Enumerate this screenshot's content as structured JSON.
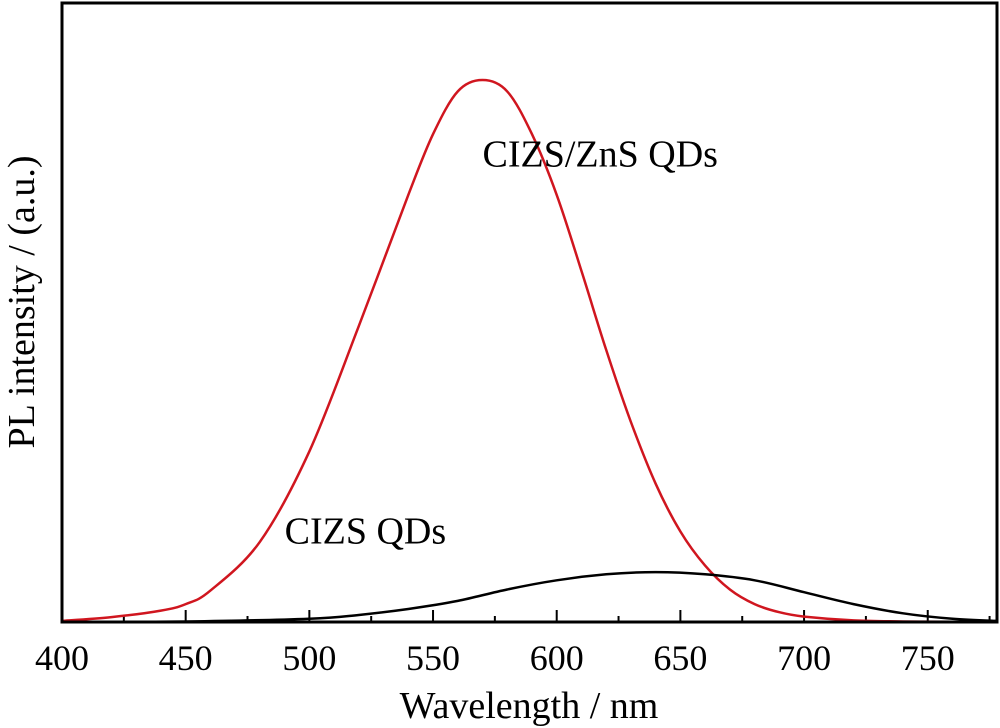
{
  "chart_data": {
    "type": "line",
    "xlabel": "Wavelength / nm",
    "ylabel": "PL intensity / (a.u.)",
    "xlim": [
      400,
      778
    ],
    "ylim": [
      0,
      1.0
    ],
    "x_ticks": [
      400,
      450,
      500,
      550,
      600,
      650,
      700,
      750
    ],
    "y_ticks_shown": false,
    "grid": false,
    "series": [
      {
        "color": "#d0161f",
        "x": [
          400,
          420,
          440,
          450,
          460,
          480,
          500,
          520,
          540,
          550,
          560,
          570,
          580,
          590,
          600,
          610,
          620,
          630,
          640,
          650,
          660,
          670,
          680,
          690,
          700,
          720,
          740,
          760,
          778
        ],
        "y": [
          0.002,
          0.009,
          0.021,
          0.033,
          0.058,
          0.148,
          0.315,
          0.546,
          0.788,
          0.9,
          0.979,
          1.0,
          0.979,
          0.9,
          0.788,
          0.648,
          0.502,
          0.369,
          0.255,
          0.167,
          0.104,
          0.06,
          0.033,
          0.018,
          0.01,
          0.003,
          0.001,
          0.0003,
          0.0001
        ]
      },
      {
        "color": "#000000",
        "x": [
          400,
          450,
          500,
          520,
          540,
          560,
          580,
          600,
          620,
          640,
          660,
          680,
          700,
          720,
          740,
          760,
          778
        ],
        "y": [
          0.0,
          0.001,
          0.006,
          0.013,
          0.024,
          0.039,
          0.06,
          0.077,
          0.088,
          0.092,
          0.088,
          0.077,
          0.055,
          0.033,
          0.016,
          0.006,
          0.002
        ]
      }
    ],
    "annotations": [
      {
        "text": "CIZS/ZnS QDs",
        "x": 570,
        "y": 0.84
      },
      {
        "text": "CIZS QDs",
        "x": 490,
        "y": 0.145
      }
    ]
  }
}
